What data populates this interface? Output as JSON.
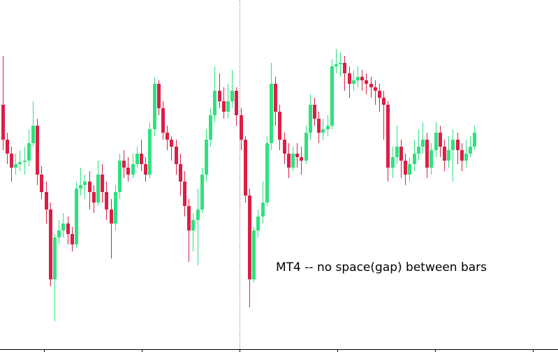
{
  "chart_data": {
    "type": "candlestick",
    "annotation": "MT4 -- no space(gap) between bars",
    "up_color": "#2ee27f",
    "down_color": "#dc1e46",
    "ylim": [
      -4,
      500
    ],
    "open": [
      350,
      300,
      280,
      260,
      265,
      268,
      270,
      295,
      320,
      250,
      225,
      200,
      100,
      160,
      170,
      180,
      165,
      150,
      230,
      235,
      240,
      225,
      210,
      250,
      225,
      200,
      180,
      225,
      270,
      260,
      250,
      265,
      280,
      265,
      250,
      315,
      380,
      345,
      310,
      300,
      290,
      265,
      240,
      205,
      170,
      185,
      200,
      250,
      300,
      335,
      370,
      355,
      340,
      355,
      370,
      335,
      300,
      220,
      100,
      170,
      190,
      210,
      295,
      380,
      340,
      300,
      280,
      260,
      280,
      275,
      270,
      310,
      350,
      330,
      310,
      315,
      320,
      405,
      408,
      410,
      395,
      380,
      385,
      390,
      385,
      380,
      375,
      370,
      360,
      350,
      260,
      275,
      290,
      270,
      250,
      265,
      280,
      290,
      300,
      260,
      285,
      310,
      290,
      270,
      285,
      300,
      285,
      270,
      280,
      290
    ],
    "high": [
      420,
      310,
      290,
      280,
      285,
      290,
      315,
      355,
      330,
      262,
      240,
      210,
      165,
      185,
      195,
      190,
      175,
      240,
      260,
      250,
      255,
      235,
      270,
      265,
      240,
      215,
      235,
      280,
      285,
      275,
      280,
      290,
      300,
      275,
      325,
      390,
      385,
      355,
      320,
      305,
      300,
      280,
      255,
      215,
      195,
      230,
      260,
      315,
      345,
      405,
      395,
      375,
      380,
      400,
      375,
      345,
      305,
      230,
      175,
      200,
      240,
      305,
      410,
      390,
      350,
      310,
      295,
      290,
      295,
      290,
      320,
      365,
      360,
      340,
      330,
      335,
      415,
      430,
      425,
      420,
      405,
      400,
      405,
      400,
      395,
      390,
      385,
      380,
      370,
      355,
      290,
      320,
      300,
      280,
      275,
      300,
      315,
      325,
      310,
      295,
      325,
      320,
      300,
      305,
      315,
      310,
      295,
      300,
      305,
      320
    ],
    "low": [
      285,
      265,
      240,
      250,
      255,
      250,
      262,
      290,
      235,
      215,
      180,
      90,
      40,
      150,
      160,
      150,
      140,
      145,
      220,
      215,
      200,
      195,
      205,
      210,
      185,
      130,
      170,
      215,
      245,
      240,
      245,
      260,
      255,
      240,
      245,
      305,
      335,
      300,
      285,
      270,
      250,
      220,
      190,
      125,
      140,
      120,
      195,
      240,
      290,
      325,
      345,
      330,
      330,
      345,
      320,
      285,
      210,
      60,
      95,
      160,
      180,
      205,
      285,
      320,
      285,
      265,
      245,
      255,
      260,
      250,
      265,
      300,
      320,
      295,
      300,
      305,
      315,
      395,
      390,
      370,
      360,
      370,
      375,
      370,
      365,
      360,
      350,
      340,
      300,
      240,
      245,
      265,
      245,
      235,
      240,
      255,
      270,
      280,
      245,
      250,
      275,
      275,
      255,
      260,
      240,
      265,
      255,
      260,
      275,
      285
    ],
    "close": [
      300,
      280,
      260,
      265,
      268,
      270,
      295,
      320,
      250,
      225,
      200,
      100,
      160,
      170,
      180,
      165,
      150,
      230,
      235,
      240,
      225,
      210,
      250,
      225,
      200,
      180,
      225,
      270,
      260,
      250,
      265,
      280,
      265,
      250,
      315,
      380,
      345,
      310,
      300,
      290,
      265,
      240,
      205,
      170,
      185,
      200,
      250,
      300,
      335,
      370,
      355,
      340,
      355,
      370,
      335,
      300,
      220,
      100,
      170,
      190,
      210,
      295,
      380,
      340,
      300,
      280,
      260,
      280,
      275,
      270,
      310,
      350,
      330,
      310,
      315,
      320,
      405,
      408,
      410,
      395,
      380,
      385,
      390,
      385,
      380,
      375,
      370,
      360,
      350,
      260,
      275,
      290,
      270,
      250,
      265,
      280,
      290,
      300,
      260,
      285,
      310,
      290,
      270,
      285,
      300,
      285,
      270,
      280,
      290,
      310
    ]
  }
}
